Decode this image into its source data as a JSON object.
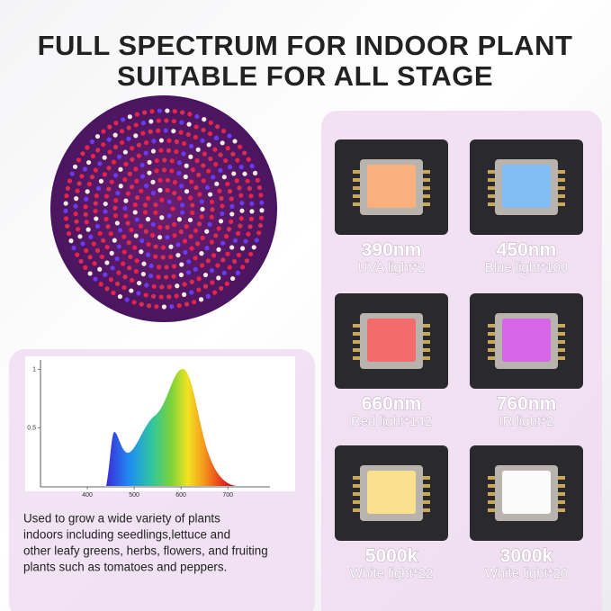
{
  "header": {
    "title_lines": [
      "FULL SPECTRUM FOR INDOOR PLANT",
      "SUITABLE FOR ALL STAGE"
    ]
  },
  "leds": [
    {
      "wavelength": "390nm",
      "label": "UVA light*2",
      "color": "#f9b07c"
    },
    {
      "wavelength": "450nm",
      "label": "Blue light*100",
      "color": "#82bdf6"
    },
    {
      "wavelength": "660nm",
      "label": "Red light*142",
      "color": "#f36b6b"
    },
    {
      "wavelength": "760nm",
      "label": "IR light*2",
      "color": "#d765e8"
    },
    {
      "wavelength": "5000k",
      "label": "White light*22",
      "color": "#f8e08c"
    },
    {
      "wavelength": "3000k",
      "label": "White light*20",
      "color": "#fbfbfb"
    }
  ],
  "spectrum": {
    "xlim": [
      300,
      790
    ],
    "ylim": [
      0,
      1.08
    ],
    "xticks": [
      400,
      500,
      600,
      700
    ],
    "yticks": [
      {
        "value": 0.5,
        "label": "0,5"
      },
      1
    ]
  },
  "description": [
    "Used to grow a wide variety of plants",
    "indoors including seedlings,lettuce and",
    "other leafy greens, herbs, flowers, and fruiting",
    "plants such as tomatoes and peppers."
  ]
}
